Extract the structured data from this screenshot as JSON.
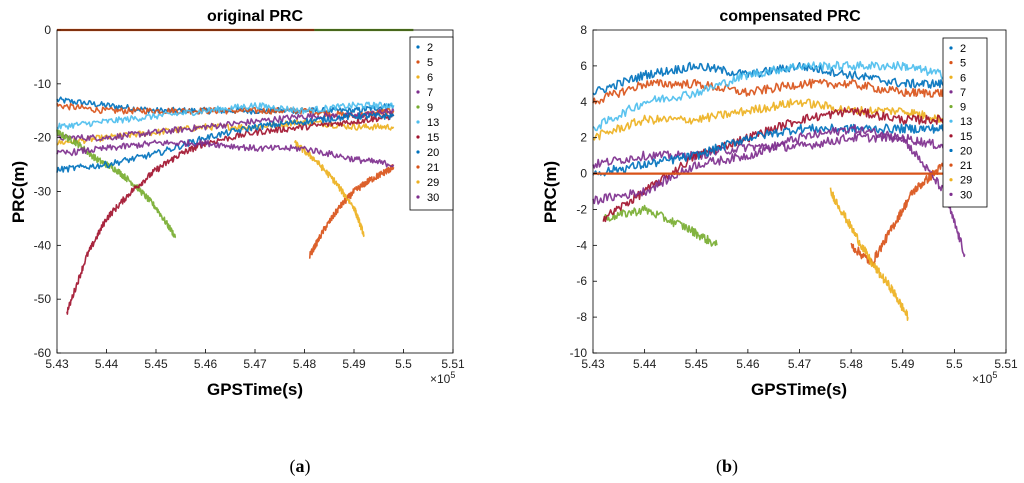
{
  "figure": {
    "caption_a": "(a)",
    "caption_b": "(b)",
    "caption_a_letter": "a",
    "caption_b_letter": "b"
  },
  "colors": {
    "2": "#0072BD",
    "5": "#D95319",
    "6": "#EDB120",
    "7": "#7E2F8E",
    "9": "#77AC30",
    "13": "#4DBEEE",
    "15": "#A2142F",
    "20": "#0072BD",
    "21": "#D95319",
    "29": "#EDB120",
    "30": "#7E2F8E"
  },
  "chart_data": [
    {
      "type": "scatter",
      "title": "original PRC",
      "xlabel": "GPSTime(s)",
      "ylabel": "PRC(m)",
      "x_exponent_label": "×10",
      "x_exponent_power": "5",
      "xlim": [
        5.43,
        5.51
      ],
      "ylim": [
        -60,
        0
      ],
      "xticks": [
        5.43,
        5.44,
        5.45,
        5.46,
        5.47,
        5.48,
        5.49,
        5.5,
        5.51
      ],
      "xtick_labels": [
        "5.43",
        "5.44",
        "5.45",
        "5.46",
        "5.47",
        "5.48",
        "5.49",
        "5.5",
        "5.51"
      ],
      "yticks": [
        -60,
        -50,
        -40,
        -30,
        -20,
        -10,
        0
      ],
      "ytick_labels": [
        "-60",
        "-50",
        "-40",
        "-30",
        "-20",
        "-10",
        "0"
      ],
      "legend": [
        "2",
        "5",
        "6",
        "7",
        "9",
        "13",
        "15",
        "20",
        "21",
        "29",
        "30"
      ],
      "legend_position": "top-right",
      "series": [
        {
          "name": "2",
          "x": [
            5.43,
            5.44,
            5.45,
            5.46,
            5.47,
            5.48,
            5.49,
            5.498
          ],
          "y": [
            -13,
            -14,
            -15,
            -15,
            -15,
            -15,
            -15,
            -14
          ]
        },
        {
          "name": "5",
          "x": [
            5.43,
            5.44,
            5.45,
            5.46,
            5.47,
            5.48,
            5.49,
            5.498
          ],
          "y": [
            -14,
            -15,
            -15,
            -15,
            -15,
            -15,
            -16,
            -15
          ]
        },
        {
          "name": "6",
          "x": [
            5.43,
            5.44,
            5.45,
            5.46,
            5.47,
            5.48,
            5.49,
            5.498
          ],
          "y": [
            -21,
            -20,
            -19,
            -18,
            -18,
            -17,
            -18,
            -18
          ]
        },
        {
          "name": "7",
          "x": [
            5.43,
            5.44,
            5.45,
            5.46,
            5.47,
            5.48,
            5.49,
            5.498
          ],
          "y": [
            -20,
            -20,
            -19,
            -18,
            -17,
            -16,
            -16,
            -15
          ]
        },
        {
          "name": "9",
          "x": [
            5.43,
            5.434,
            5.438,
            5.442,
            5.446,
            5.45,
            5.454
          ],
          "y": [
            -19,
            -21,
            -24,
            -26,
            -29,
            -33,
            -38.5
          ]
        },
        {
          "name": "13",
          "x": [
            5.43,
            5.44,
            5.45,
            5.46,
            5.47,
            5.48,
            5.49,
            5.498
          ],
          "y": [
            -18,
            -17,
            -16,
            -15,
            -14,
            -15,
            -14,
            -14
          ]
        },
        {
          "name": "15",
          "x": [
            5.432,
            5.436,
            5.44,
            5.445,
            5.45,
            5.455,
            5.46,
            5.47,
            5.48,
            5.49,
            5.498
          ],
          "y": [
            -52.5,
            -42,
            -35,
            -30,
            -26,
            -23,
            -21,
            -19,
            -18,
            -17,
            -16
          ]
        },
        {
          "name": "20",
          "x": [
            5.43,
            5.44,
            5.45,
            5.46,
            5.47,
            5.48,
            5.49,
            5.498
          ],
          "y": [
            -26,
            -25,
            -23,
            -20,
            -18,
            -17,
            -16,
            -16
          ]
        },
        {
          "name": "21",
          "x": [
            5.481,
            5.484,
            5.487,
            5.49,
            5.493,
            5.496,
            5.498
          ],
          "y": [
            -42,
            -37,
            -33,
            -30,
            -28,
            -26.5,
            -25.5
          ]
        },
        {
          "name": "29",
          "x": [
            5.478,
            5.482,
            5.486,
            5.49,
            5.492
          ],
          "y": [
            -21,
            -24,
            -28,
            -33,
            -38
          ]
        },
        {
          "name": "30",
          "x": [
            5.43,
            5.44,
            5.45,
            5.46,
            5.47,
            5.48,
            5.49,
            5.498
          ],
          "y": [
            -23,
            -22,
            -21,
            -21,
            -22,
            -22,
            -24,
            -25
          ]
        },
        {
          "name": "0-line-a",
          "x": [
            5.43,
            5.45,
            5.455,
            5.482
          ],
          "y": [
            0,
            0,
            0,
            0
          ],
          "color": "#D95319"
        },
        {
          "name": "0-line-b",
          "x": [
            5.482,
            5.502
          ],
          "y": [
            0,
            0
          ],
          "color": "#77AC30"
        }
      ]
    },
    {
      "type": "scatter",
      "title": "compensated PRC",
      "xlabel": "GPSTime(s)",
      "ylabel": "PRC(m)",
      "x_exponent_label": "×10",
      "x_exponent_power": "5",
      "xlim": [
        5.43,
        5.51
      ],
      "ylim": [
        -10,
        8
      ],
      "xticks": [
        5.43,
        5.44,
        5.45,
        5.46,
        5.47,
        5.48,
        5.49,
        5.5,
        5.51
      ],
      "xtick_labels": [
        "5.43",
        "5.44",
        "5.45",
        "5.46",
        "5.47",
        "5.48",
        "5.49",
        "5.5",
        "5.51"
      ],
      "yticks": [
        -10,
        -8,
        -6,
        -4,
        -2,
        0,
        2,
        4,
        6,
        8
      ],
      "ytick_labels": [
        "-10",
        "-8",
        "-6",
        "-4",
        "-2",
        "0",
        "2",
        "4",
        "6",
        "8"
      ],
      "legend": [
        "2",
        "5",
        "6",
        "7",
        "9",
        "13",
        "15",
        "20",
        "21",
        "29",
        "30"
      ],
      "legend_position": "top-right",
      "series": [
        {
          "name": "2",
          "x": [
            5.43,
            5.44,
            5.45,
            5.46,
            5.47,
            5.48,
            5.49,
            5.498
          ],
          "y": [
            4.5,
            5.5,
            6.0,
            5.5,
            6.0,
            5.5,
            5.0,
            5.0
          ]
        },
        {
          "name": "5",
          "x": [
            5.43,
            5.44,
            5.45,
            5.46,
            5.47,
            5.48,
            5.49,
            5.498
          ],
          "y": [
            4.0,
            5.0,
            5.0,
            4.5,
            5.0,
            5.0,
            4.5,
            4.5
          ]
        },
        {
          "name": "6",
          "x": [
            5.43,
            5.44,
            5.45,
            5.46,
            5.47,
            5.48,
            5.49,
            5.498
          ],
          "y": [
            2.0,
            3.0,
            3.0,
            3.5,
            4.0,
            3.5,
            3.5,
            3.0
          ]
        },
        {
          "name": "7",
          "x": [
            5.43,
            5.44,
            5.45,
            5.46,
            5.47,
            5.48,
            5.49,
            5.498
          ],
          "y": [
            0.5,
            1.0,
            1.0,
            1.5,
            1.5,
            2.0,
            2.0,
            1.5
          ]
        },
        {
          "name": "9",
          "x": [
            5.432,
            5.44,
            5.448,
            5.454
          ],
          "y": [
            -2.5,
            -2.0,
            -3.0,
            -4.0
          ]
        },
        {
          "name": "13",
          "x": [
            5.43,
            5.44,
            5.45,
            5.46,
            5.47,
            5.48,
            5.49,
            5.498
          ],
          "y": [
            2.5,
            4.0,
            4.5,
            5.5,
            6.0,
            6.0,
            6.0,
            5.5
          ]
        },
        {
          "name": "15",
          "x": [
            5.432,
            5.44,
            5.45,
            5.46,
            5.47,
            5.48,
            5.49,
            5.498
          ],
          "y": [
            -2.5,
            -1.0,
            1.0,
            2.0,
            3.0,
            3.5,
            3.0,
            3.0
          ]
        },
        {
          "name": "20",
          "x": [
            5.43,
            5.44,
            5.45,
            5.46,
            5.47,
            5.48,
            5.49,
            5.498
          ],
          "y": [
            0.0,
            0.5,
            1.0,
            2.0,
            2.5,
            2.5,
            2.5,
            2.5
          ]
        },
        {
          "name": "21",
          "x": [
            5.48,
            5.484,
            5.488,
            5.492,
            5.496,
            5.5
          ],
          "y": [
            -4.0,
            -5.0,
            -3.0,
            -1.0,
            0.0,
            1.0
          ]
        },
        {
          "name": "29",
          "x": [
            5.476,
            5.48,
            5.484,
            5.488,
            5.491
          ],
          "y": [
            -1.0,
            -3.0,
            -5.0,
            -6.5,
            -8.0
          ]
        },
        {
          "name": "30",
          "x": [
            5.43,
            5.44,
            5.45,
            5.46,
            5.47,
            5.48,
            5.49,
            5.498,
            5.502
          ],
          "y": [
            -1.5,
            -1.0,
            0.5,
            1.0,
            2.0,
            2.5,
            2.0,
            -1.0,
            -4.5
          ]
        },
        {
          "name": "0-line",
          "x": [
            5.43,
            5.498
          ],
          "y": [
            0,
            0
          ],
          "color": "#D95319"
        }
      ]
    }
  ]
}
